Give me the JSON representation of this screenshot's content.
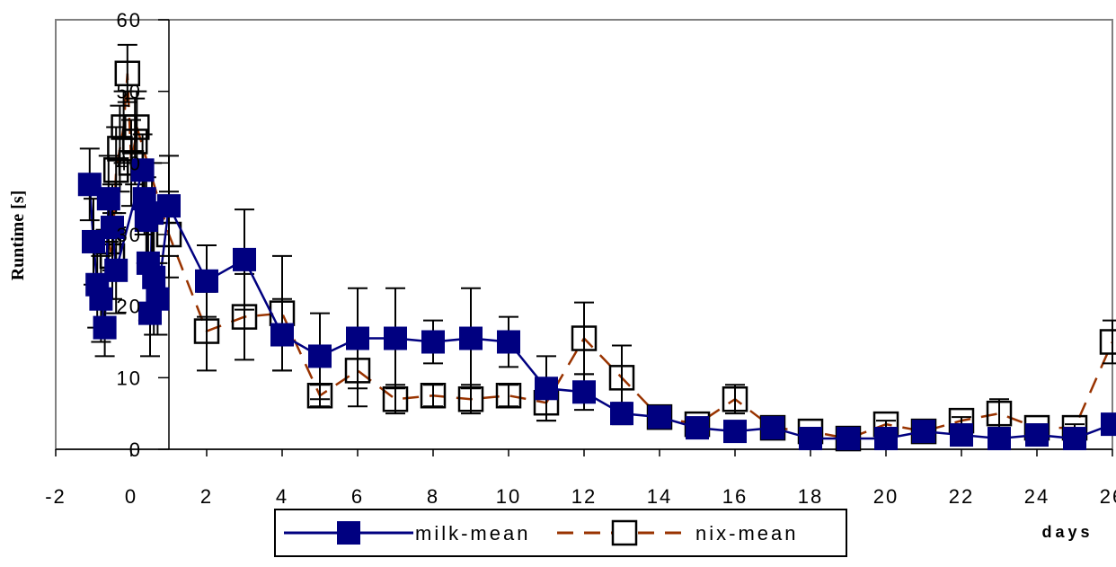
{
  "chart_data": {
    "type": "line",
    "xlabel": "days",
    "ylabel": "Runtime [s]",
    "xlim": [
      -2,
      26
    ],
    "ylim": [
      0,
      60
    ],
    "x_ticks": [
      "-2",
      "0",
      "2",
      "4",
      "6",
      "8",
      "10",
      "12",
      "14",
      "16",
      "18",
      "20",
      "22",
      "24",
      "26"
    ],
    "y_ticks": [
      "0",
      "10",
      "20",
      "30",
      "40",
      "50",
      "60"
    ],
    "legend_position": "bottom-center",
    "colors": {
      "milk": "#000080",
      "nix": "#993300"
    },
    "series": [
      {
        "name": "milk-mean",
        "color": "#000080",
        "marker": "filled-square",
        "line": "solid",
        "points": [
          {
            "x": -1.1,
            "y": 37,
            "err": 5
          },
          {
            "x": -1.0,
            "y": 29,
            "err": 6
          },
          {
            "x": -0.9,
            "y": 23,
            "err": 6
          },
          {
            "x": -0.8,
            "y": 21,
            "err": 6
          },
          {
            "x": -0.7,
            "y": 17,
            "err": 4
          },
          {
            "x": -0.6,
            "y": 35,
            "err": 6
          },
          {
            "x": -0.5,
            "y": 31,
            "err": 6
          },
          {
            "x": -0.4,
            "y": 25,
            "err": 6
          },
          {
            "x": 0.3,
            "y": 39,
            "err": 5
          },
          {
            "x": 0.35,
            "y": 35,
            "err": 5
          },
          {
            "x": 0.4,
            "y": 32,
            "err": 6
          },
          {
            "x": 0.45,
            "y": 26,
            "err": 8
          },
          {
            "x": 0.5,
            "y": 19,
            "err": 6
          },
          {
            "x": 0.55,
            "y": 33,
            "err": 7
          },
          {
            "x": 0.6,
            "y": 24,
            "err": 8
          },
          {
            "x": 0.7,
            "y": 21,
            "err": 5
          },
          {
            "x": 1,
            "y": 34,
            "err": 7
          },
          {
            "x": 2,
            "y": 23.5,
            "err": 5
          },
          {
            "x": 3,
            "y": 26.5,
            "err": 7
          },
          {
            "x": 4,
            "y": 16,
            "err": 5
          },
          {
            "x": 5,
            "y": 13,
            "err": 6
          },
          {
            "x": 6,
            "y": 15.5,
            "err": 7
          },
          {
            "x": 7,
            "y": 15.5,
            "err": 7
          },
          {
            "x": 8,
            "y": 15,
            "err": 3
          },
          {
            "x": 9,
            "y": 15.5,
            "err": 7
          },
          {
            "x": 10,
            "y": 15,
            "err": 3.5
          },
          {
            "x": 11,
            "y": 8.5,
            "err": 4.5
          },
          {
            "x": 12,
            "y": 8,
            "err": 2.5
          },
          {
            "x": 13,
            "y": 5,
            "err": 1.5
          },
          {
            "x": 14,
            "y": 4.5,
            "err": 1
          },
          {
            "x": 15,
            "y": 3,
            "err": 1
          },
          {
            "x": 16,
            "y": 2.5,
            "err": 0.5
          },
          {
            "x": 17,
            "y": 3,
            "err": 1
          },
          {
            "x": 18,
            "y": 1.5,
            "err": 0.5
          },
          {
            "x": 19,
            "y": 1.5,
            "err": 0.5
          },
          {
            "x": 20,
            "y": 1.5,
            "err": 0.5
          },
          {
            "x": 21,
            "y": 2.5,
            "err": 0.5
          },
          {
            "x": 22,
            "y": 2,
            "err": 0.5
          },
          {
            "x": 23,
            "y": 1.5,
            "err": 0.5
          },
          {
            "x": 24,
            "y": 2,
            "err": 0.5
          },
          {
            "x": 25,
            "y": 1.5,
            "err": 0.5
          },
          {
            "x": 26,
            "y": 3.5,
            "err": 0.5
          }
        ]
      },
      {
        "name": "nix-mean",
        "color": "#993300",
        "marker": "open-square",
        "line": "dashed",
        "points": [
          {
            "x": -0.6,
            "y": 29,
            "err": 5
          },
          {
            "x": -0.5,
            "y": 27,
            "err": 6
          },
          {
            "x": -0.4,
            "y": 39,
            "err": 6
          },
          {
            "x": -0.3,
            "y": 42,
            "err": 6
          },
          {
            "x": -0.2,
            "y": 45,
            "err": 5
          },
          {
            "x": -0.1,
            "y": 52.5,
            "err": 4
          },
          {
            "x": 0.0,
            "y": 40,
            "err": 6
          },
          {
            "x": 0.1,
            "y": 43,
            "err": 6
          },
          {
            "x": 0.15,
            "y": 45,
            "err": 5
          },
          {
            "x": 1,
            "y": 30,
            "err": 6
          },
          {
            "x": 2,
            "y": 16.5,
            "err": 5.5
          },
          {
            "x": 3,
            "y": 18.5,
            "err": 6
          },
          {
            "x": 4,
            "y": 19,
            "err": 8
          },
          {
            "x": 5,
            "y": 7.5,
            "err": 1.5
          },
          {
            "x": 6,
            "y": 11,
            "err": 5
          },
          {
            "x": 7,
            "y": 7,
            "err": 2
          },
          {
            "x": 8,
            "y": 7.5,
            "err": 1.5
          },
          {
            "x": 9,
            "y": 7,
            "err": 2
          },
          {
            "x": 10,
            "y": 7.5,
            "err": 1.5
          },
          {
            "x": 11,
            "y": 6.5,
            "err": 2.5
          },
          {
            "x": 12,
            "y": 15.5,
            "err": 5
          },
          {
            "x": 13,
            "y": 10,
            "err": 4.5
          },
          {
            "x": 14,
            "y": 4.5,
            "err": 0.5
          },
          {
            "x": 15,
            "y": 3.5,
            "err": 0.5
          },
          {
            "x": 16,
            "y": 7,
            "err": 2
          },
          {
            "x": 17,
            "y": 3,
            "err": 0.5
          },
          {
            "x": 18,
            "y": 2.5,
            "err": 0.5
          },
          {
            "x": 19,
            "y": 1.5,
            "err": 0.5
          },
          {
            "x": 20,
            "y": 3.5,
            "err": 0.5
          },
          {
            "x": 21,
            "y": 2.5,
            "err": 0.5
          },
          {
            "x": 22,
            "y": 4,
            "err": 0.5
          },
          {
            "x": 23,
            "y": 5,
            "err": 2
          },
          {
            "x": 24,
            "y": 3,
            "err": 0.5
          },
          {
            "x": 25,
            "y": 3,
            "err": 0.5
          },
          {
            "x": 26,
            "y": 15,
            "err": 3
          }
        ]
      }
    ]
  }
}
